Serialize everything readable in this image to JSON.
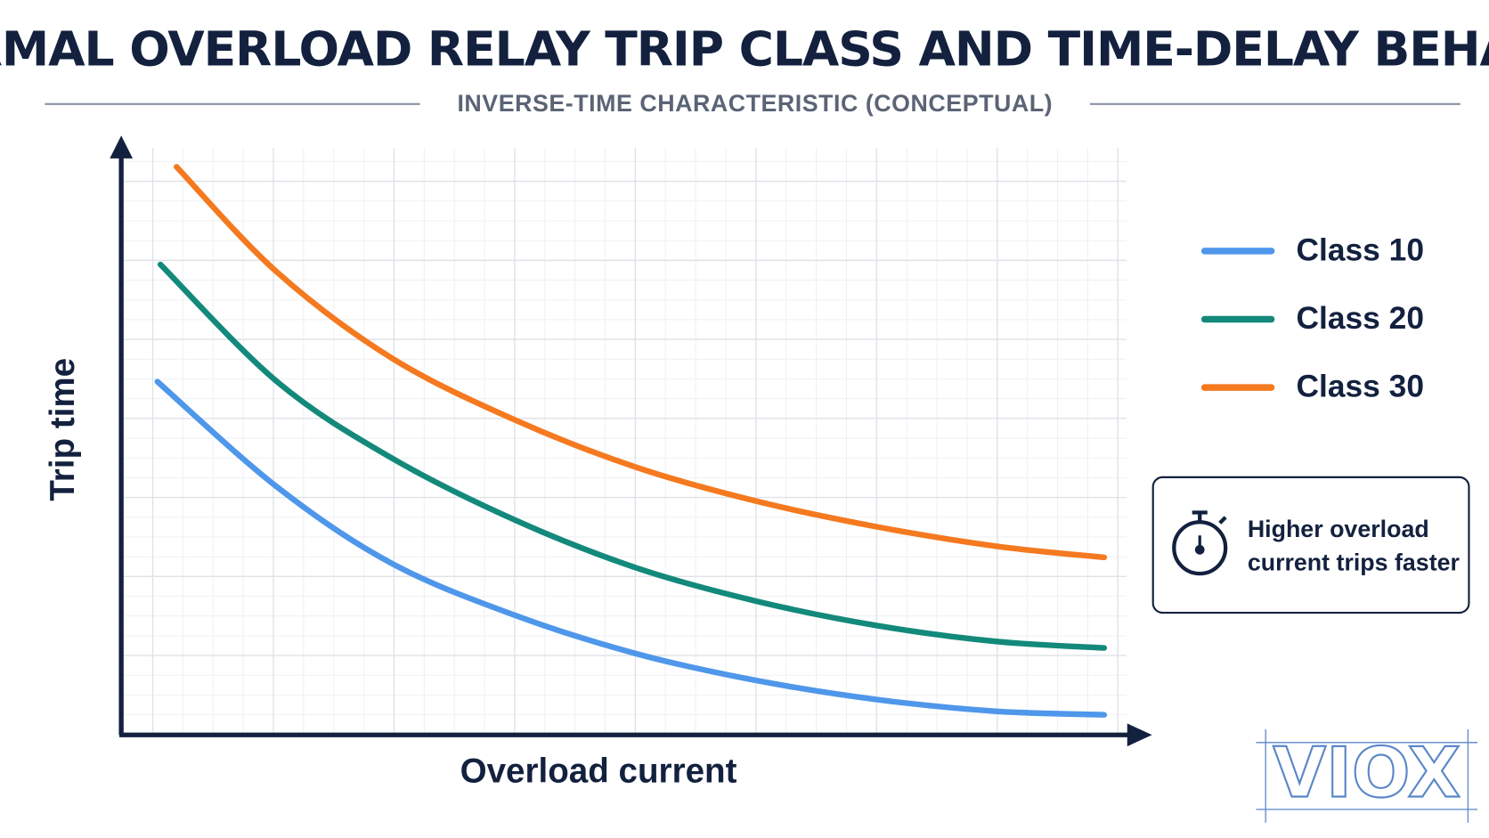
{
  "chart_data": {
    "type": "line",
    "title": "THERMAL OVERLOAD RELAY TRIP CLASS AND TIME-DELAY BEHAVIOR",
    "subtitle": "INVERSE-TIME CHARACTERISTIC (CONCEPTUAL)",
    "x_label": "Overload current",
    "y_label": "Trip time",
    "xlim": [
      0,
      10
    ],
    "ylim": [
      0,
      10
    ],
    "grid": true,
    "legend": "right",
    "series": [
      {
        "name": "Class 10",
        "color": "#4f97ea",
        "x": [
          0.36,
          1.55,
          2.69,
          3.92,
          5.13,
          6.32,
          7.51,
          8.7,
          9.78
        ],
        "values": [
          5.97,
          4.19,
          2.9,
          2.02,
          1.37,
          0.92,
          0.6,
          0.4,
          0.34
        ]
      },
      {
        "name": "Class 20",
        "color": "#13897b",
        "x": [
          0.39,
          1.55,
          2.69,
          3.92,
          5.13,
          6.32,
          7.51,
          8.7,
          9.78
        ],
        "values": [
          7.95,
          5.97,
          4.68,
          3.63,
          2.82,
          2.26,
          1.85,
          1.58,
          1.47
        ]
      },
      {
        "name": "Class 30",
        "color": "#f5791f",
        "x": [
          0.55,
          1.55,
          2.69,
          3.92,
          5.13,
          6.32,
          7.51,
          8.7,
          9.78
        ],
        "values": [
          9.6,
          7.82,
          6.37,
          5.32,
          4.52,
          3.95,
          3.52,
          3.19,
          3.0
        ]
      }
    ],
    "note": [
      "Higher overload",
      "current trips faster"
    ],
    "logo": "VIOX"
  }
}
